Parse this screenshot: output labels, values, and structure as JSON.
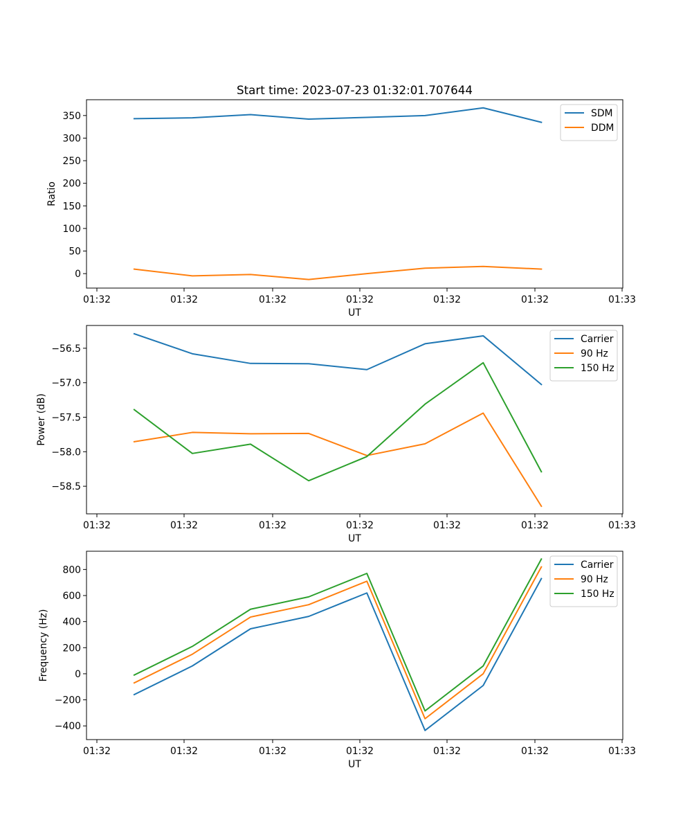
{
  "chart_data": [
    {
      "type": "line",
      "title": "Start time: 2023-07-23 01:32:01.707644",
      "xlabel": "UT",
      "ylabel": "Ratio",
      "xtick_labels": [
        "01:32",
        "01:32",
        "01:32",
        "01:32",
        "01:32",
        "01:32",
        "01:32"
      ],
      "xtick_last_label": "01:33",
      "x": [
        1,
        2,
        3,
        4,
        5,
        6,
        7,
        8
      ],
      "xlim": [
        0.18,
        9.4
      ],
      "ylim": [
        -32,
        385
      ],
      "yticks": [
        0,
        50,
        100,
        150,
        200,
        250,
        300,
        350
      ],
      "legend_loc": "upper right",
      "series": [
        {
          "name": "SDM",
          "color": "#1f77b4",
          "values": [
            343,
            345,
            352,
            342,
            346,
            350,
            367,
            335
          ]
        },
        {
          "name": "DDM",
          "color": "#ff7f0e",
          "values": [
            10,
            -5,
            -2,
            -13,
            0,
            12,
            16,
            10
          ]
        }
      ]
    },
    {
      "type": "line",
      "title": "",
      "xlabel": "UT",
      "ylabel": "Power (dB)",
      "xtick_labels": [
        "01:32",
        "01:32",
        "01:32",
        "01:32",
        "01:32",
        "01:32",
        "01:32"
      ],
      "xtick_last_label": "01:33",
      "x": [
        1,
        2,
        3,
        4,
        5,
        6,
        7,
        8
      ],
      "xlim": [
        0.18,
        9.4
      ],
      "ylim": [
        -58.9,
        -56.17
      ],
      "yticks": [
        -58.5,
        -58.0,
        -57.5,
        -57.0,
        -56.5
      ],
      "ytick_labels": [
        "−58.5",
        "−58.0",
        "−57.5",
        "−57.0",
        "−56.5"
      ],
      "legend_loc": "upper right",
      "series": [
        {
          "name": "Carrier",
          "color": "#1f77b4",
          "values": [
            -56.29,
            -56.58,
            -56.72,
            -56.725,
            -56.81,
            -56.435,
            -56.32,
            -57.025
          ]
        },
        {
          "name": "90 Hz",
          "color": "#ff7f0e",
          "values": [
            -57.855,
            -57.72,
            -57.74,
            -57.735,
            -58.055,
            -57.885,
            -57.44,
            -58.79
          ]
        },
        {
          "name": "150 Hz",
          "color": "#2ca02c",
          "values": [
            -57.39,
            -58.025,
            -57.89,
            -58.42,
            -58.07,
            -57.31,
            -56.71,
            -58.29
          ]
        }
      ]
    },
    {
      "type": "line",
      "title": "",
      "xlabel": "UT",
      "ylabel": "Frequency (Hz)",
      "xtick_labels": [
        "01:32",
        "01:32",
        "01:32",
        "01:32",
        "01:32",
        "01:32",
        "01:32"
      ],
      "xtick_last_label": "01:33",
      "x": [
        1,
        2,
        3,
        4,
        5,
        6,
        7,
        8
      ],
      "xlim": [
        0.18,
        9.4
      ],
      "ylim": [
        -505,
        940
      ],
      "yticks": [
        -400,
        -200,
        0,
        200,
        400,
        600,
        800
      ],
      "ytick_labels": [
        "−400",
        "−200",
        "0",
        "200",
        "400",
        "600",
        "800"
      ],
      "legend_loc": "upper right",
      "series": [
        {
          "name": "Carrier",
          "color": "#1f77b4",
          "values": [
            -160,
            60,
            345,
            440,
            620,
            -435,
            -90,
            730
          ]
        },
        {
          "name": "90 Hz",
          "color": "#ff7f0e",
          "values": [
            -70,
            150,
            435,
            530,
            710,
            -345,
            0,
            820
          ]
        },
        {
          "name": "150 Hz",
          "color": "#2ca02c",
          "values": [
            -10,
            210,
            495,
            590,
            770,
            -285,
            60,
            880
          ]
        }
      ]
    }
  ]
}
